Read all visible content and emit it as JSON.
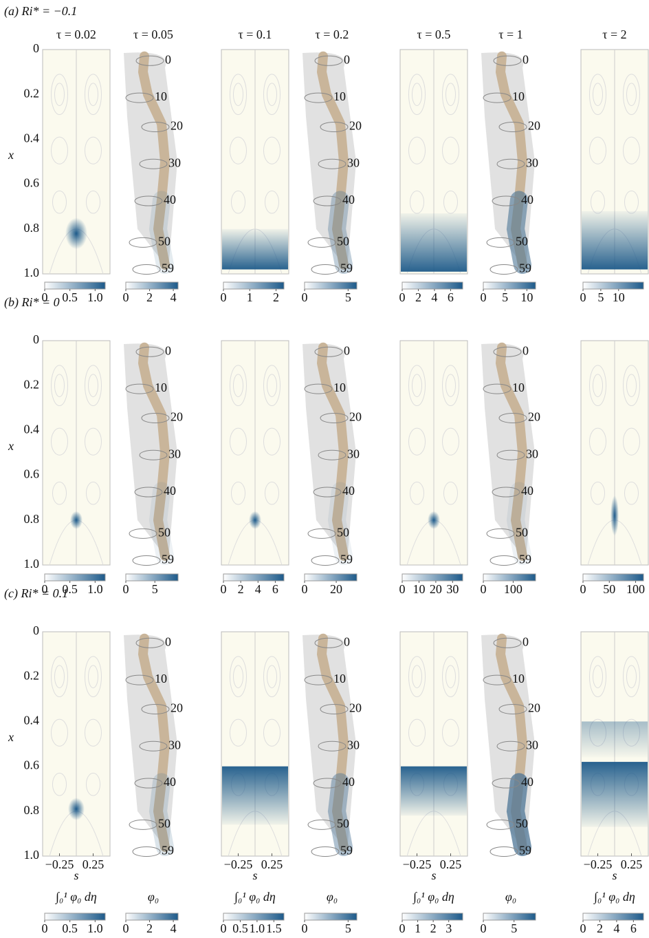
{
  "figure": {
    "columns": [
      {
        "tau_label": "τ = 0.02",
        "kind": "contour"
      },
      {
        "tau_label": "τ = 0.05",
        "kind": "worm"
      },
      {
        "tau_label": "τ = 0.1",
        "kind": "contour"
      },
      {
        "tau_label": "τ = 0.2",
        "kind": "worm"
      },
      {
        "tau_label": "τ = 0.5",
        "kind": "contour"
      },
      {
        "tau_label": "τ = 1",
        "kind": "worm"
      },
      {
        "tau_label": "τ = 2",
        "kind": "contour"
      }
    ],
    "y_axis": {
      "label": "x",
      "lim": [
        0,
        1
      ],
      "ticks": [
        0,
        0.2,
        0.4,
        0.6,
        0.8,
        {
          "value": 1,
          "label": "1.0"
        }
      ]
    },
    "s_axis": {
      "label": "s",
      "lim": [
        -0.5,
        0.5
      ],
      "ticks": [
        {
          "value": -0.25,
          "label": "−0.25"
        },
        0.25
      ]
    },
    "slice_labels": [
      0,
      10,
      20,
      30,
      40,
      50,
      59
    ],
    "colorbar_titles": {
      "contour": "∫₀¹ φ₀ dη",
      "worm": "φ₀"
    },
    "rows": [
      {
        "label": "(a) Ri* = −0.1",
        "colorbars": [
          {
            "range": [
              0,
              1.2
            ],
            "ticks": [
              0,
              0.5,
              {
                "value": 1,
                "label": "1.0"
              }
            ]
          },
          {
            "range": [
              0,
              4.4
            ],
            "ticks": [
              0,
              2,
              4
            ]
          },
          {
            "range": [
              0,
              2.3
            ],
            "ticks": [
              0,
              1,
              2
            ]
          },
          {
            "range": [
              0,
              6
            ],
            "ticks": [
              0,
              5
            ]
          },
          {
            "range": [
              0,
              7.5
            ],
            "ticks": [
              0,
              2,
              4,
              6
            ]
          },
          {
            "range": [
              0,
              12
            ],
            "ticks": [
              0,
              5,
              10
            ]
          },
          {
            "range": [
              0,
              17
            ],
            "ticks": [
              0,
              5,
              10
            ]
          }
        ]
      },
      {
        "label": "(b) Ri* = 0",
        "colorbars": [
          {
            "range": [
              0,
              1.2
            ],
            "ticks": [
              0,
              0.5,
              {
                "value": 1,
                "label": "1.0"
              }
            ]
          },
          {
            "range": [
              0,
              9
            ],
            "ticks": [
              0,
              5
            ]
          },
          {
            "range": [
              0,
              7
            ],
            "ticks": [
              0,
              2,
              4,
              6
            ]
          },
          {
            "range": [
              0,
              33
            ],
            "ticks": [
              0,
              20
            ]
          },
          {
            "range": [
              0,
              36
            ],
            "ticks": [
              0,
              10,
              20,
              30
            ]
          },
          {
            "range": [
              0,
              175
            ],
            "ticks": [
              0,
              100
            ]
          },
          {
            "range": [
              0,
              115
            ],
            "ticks": [
              0,
              50,
              100
            ]
          }
        ]
      },
      {
        "label": "(c) Ri* = 0.1",
        "colorbars": [
          {
            "range": [
              0,
              1.2
            ],
            "ticks": [
              0,
              0.5,
              {
                "value": 1,
                "label": "1.0"
              }
            ]
          },
          {
            "range": [
              0,
              4.4
            ],
            "ticks": [
              0,
              2,
              4
            ]
          },
          {
            "range": [
              0,
              1.8
            ],
            "ticks": [
              0,
              0.5,
              {
                "value": 1,
                "label": "1.0"
              },
              1.5
            ]
          },
          {
            "range": [
              0,
              6
            ],
            "ticks": [
              0,
              5
            ]
          },
          {
            "range": [
              0,
              3.9
            ],
            "ticks": [
              0,
              1,
              2,
              3
            ]
          },
          {
            "range": [
              0,
              8.5
            ],
            "ticks": [
              0,
              5
            ]
          },
          {
            "range": [
              0,
              7.2
            ],
            "ticks": [
              0,
              2,
              4,
              6
            ]
          }
        ]
      }
    ]
  }
}
